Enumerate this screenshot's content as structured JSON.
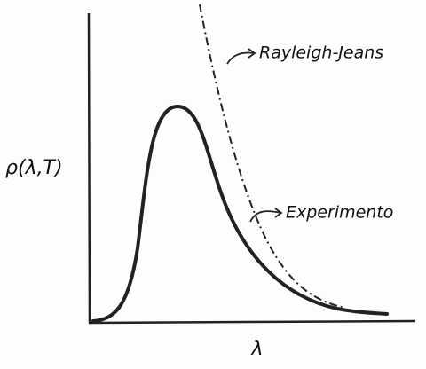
{
  "axes": {
    "y_label": "ρ(λ,T)",
    "x_label": "λ"
  },
  "curves": [
    {
      "label": "Rayleigh-Jeans"
    },
    {
      "label": "Experimento"
    }
  ]
}
